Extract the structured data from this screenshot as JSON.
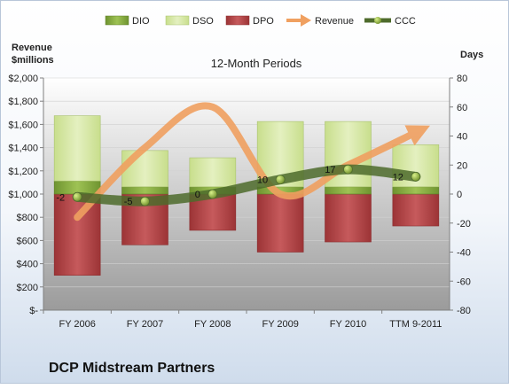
{
  "company": "DCP Midstream Partners",
  "chart_data": {
    "type": "bar",
    "title": "12-Month Periods",
    "left_axis": {
      "label_line1": "Revenue",
      "label_line2": "$millions",
      "ylim": [
        0,
        2000
      ],
      "ticks": [
        "$-",
        "$200",
        "$400",
        "$600",
        "$800",
        "$1,000",
        "$1,200",
        "$1,400",
        "$1,600",
        "$1,800",
        "$2,000"
      ]
    },
    "right_axis": {
      "label": "Days",
      "ylim": [
        -80,
        80
      ],
      "ticks": [
        "-80",
        "-60",
        "-40",
        "-20",
        "0",
        "20",
        "40",
        "60",
        "80"
      ]
    },
    "categories": [
      "FY 2006",
      "FY 2007",
      "FY 2008",
      "FY 2009",
      "FY 2010",
      "TTM 9-2011"
    ],
    "legend": {
      "placement": "top",
      "entries": [
        "DIO",
        "DSO",
        "DPO",
        "Revenue",
        "CCC"
      ]
    },
    "series": [
      {
        "name": "DIO",
        "axis": "right",
        "values": [
          9,
          5,
          5,
          5,
          5,
          5
        ]
      },
      {
        "name": "DSO",
        "axis": "right",
        "values": [
          45,
          25,
          20,
          45,
          45,
          29
        ]
      },
      {
        "name": "DPO",
        "axis": "right",
        "values": [
          -56,
          -35,
          -25,
          -40,
          -33,
          -22
        ]
      },
      {
        "name": "Revenue",
        "axis": "left",
        "values": [
          800,
          1400,
          1750,
          1000,
          1250,
          1530
        ]
      },
      {
        "name": "CCC",
        "axis": "right",
        "values": [
          -2,
          -5,
          0,
          10,
          17,
          12
        ],
        "labels": [
          "-2",
          "-5",
          "0",
          "10",
          "17",
          "12"
        ]
      }
    ],
    "colors": {
      "DIO": "#86ad3e",
      "DSO": "#d4e6a4",
      "DPO": "#b84a4c",
      "Revenue": "#f0a060",
      "CCC": "#4e6b2c",
      "plot_top": "#ffffff",
      "plot_bottom": "#9b9b9b"
    }
  }
}
